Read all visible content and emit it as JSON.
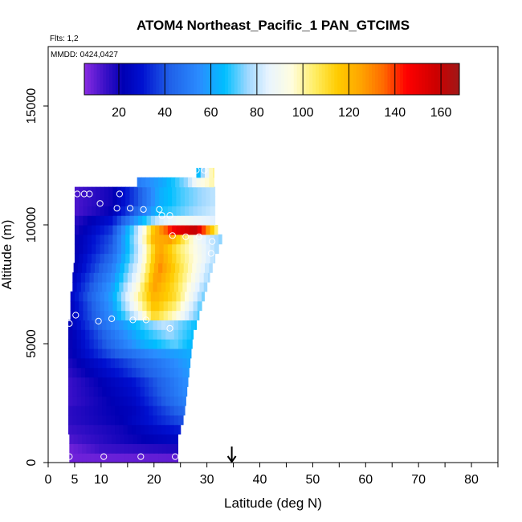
{
  "header": {
    "title": "ATOM4 Northeast_Pacific_1 PAN_GTCIMS",
    "flights_note": "Flts: 1,2",
    "dates_note": "MMDD: 0424,0427"
  },
  "colorbar": {
    "min": 5,
    "max": 168,
    "ticks": [
      "20",
      "40",
      "60",
      "80",
      "100",
      "120",
      "140",
      "160"
    ],
    "tick_values": [
      20,
      40,
      60,
      80,
      100,
      120,
      140,
      160
    ],
    "colors": [
      {
        "v": 5,
        "c": "#8a2be2"
      },
      {
        "v": 14,
        "c": "#3b10c8"
      },
      {
        "v": 22,
        "c": "#0000b4"
      },
      {
        "v": 30,
        "c": "#0010d0"
      },
      {
        "v": 42,
        "c": "#2060e8"
      },
      {
        "v": 55,
        "c": "#2a8cff"
      },
      {
        "v": 66,
        "c": "#00bfff"
      },
      {
        "v": 76,
        "c": "#9fd8ff"
      },
      {
        "v": 85,
        "c": "#e8f4ff"
      },
      {
        "v": 95,
        "c": "#fffde0"
      },
      {
        "v": 105,
        "c": "#ffee66"
      },
      {
        "v": 115,
        "c": "#ffcc00"
      },
      {
        "v": 125,
        "c": "#ffa500"
      },
      {
        "v": 135,
        "c": "#ff6a00"
      },
      {
        "v": 145,
        "c": "#ff0000"
      },
      {
        "v": 158,
        "c": "#cc0000"
      },
      {
        "v": 168,
        "c": "#a01818"
      }
    ]
  },
  "chart_data": {
    "type": "heatmap",
    "title": "ATOM4 Northeast_Pacific_1 PAN_GTCIMS",
    "xlabel": "Latitude (deg N)",
    "ylabel": "Altitude (m)",
    "xlim": [
      0,
      85
    ],
    "ylim": [
      0,
      17500
    ],
    "x_ticks": [
      0,
      5,
      10,
      20,
      30,
      40,
      50,
      60,
      70,
      80
    ],
    "x_minor_ticks": [
      15,
      25,
      35,
      45,
      55,
      65,
      75,
      85
    ],
    "y_ticks": [
      0,
      5000,
      10000,
      15000
    ],
    "arrow_latitude": 34.7,
    "altitude_bin_m": 400,
    "note": "Each row: altitude bin bottom, latitude extent, and PAN value profile along latitude (value at latitude via piecewise linear knots).",
    "rows": [
      {
        "alt": 0,
        "lat": [
          4.0,
          24.5
        ],
        "knots": [
          [
            4,
            8
          ],
          [
            24.5,
            10
          ]
        ]
      },
      {
        "alt": 400,
        "lat": [
          4.0,
          24.5
        ],
        "knots": [
          [
            4,
            8
          ],
          [
            10,
            14
          ],
          [
            24.5,
            18
          ]
        ]
      },
      {
        "alt": 800,
        "lat": [
          4.0,
          24.5
        ],
        "knots": [
          [
            4,
            12
          ],
          [
            12,
            18
          ],
          [
            24.5,
            26
          ]
        ]
      },
      {
        "alt": 1200,
        "lat": [
          3.8,
          25.0
        ],
        "knots": [
          [
            3.8,
            14
          ],
          [
            14,
            20
          ],
          [
            25,
            32
          ]
        ]
      },
      {
        "alt": 1600,
        "lat": [
          3.8,
          25.5
        ],
        "knots": [
          [
            3.8,
            16
          ],
          [
            14,
            22
          ],
          [
            25.5,
            40
          ]
        ]
      },
      {
        "alt": 2000,
        "lat": [
          3.8,
          25.8
        ],
        "knots": [
          [
            3.8,
            16
          ],
          [
            16,
            24
          ],
          [
            25.8,
            46
          ]
        ]
      },
      {
        "alt": 2400,
        "lat": [
          3.8,
          26.0
        ],
        "knots": [
          [
            3.8,
            14
          ],
          [
            16,
            26
          ],
          [
            26,
            52
          ]
        ]
      },
      {
        "alt": 2800,
        "lat": [
          3.8,
          26.2
        ],
        "knots": [
          [
            3.8,
            14
          ],
          [
            16,
            28
          ],
          [
            26.2,
            55
          ]
        ]
      },
      {
        "alt": 3200,
        "lat": [
          3.8,
          26.4
        ],
        "knots": [
          [
            3.8,
            14
          ],
          [
            16,
            30
          ],
          [
            26.4,
            56
          ]
        ]
      },
      {
        "alt": 3600,
        "lat": [
          3.8,
          26.6
        ],
        "knots": [
          [
            3.8,
            16
          ],
          [
            14,
            32
          ],
          [
            26.6,
            58
          ]
        ]
      },
      {
        "alt": 4000,
        "lat": [
          3.8,
          26.8
        ],
        "knots": [
          [
            3.8,
            18
          ],
          [
            14,
            36
          ],
          [
            26.8,
            60
          ]
        ]
      },
      {
        "alt": 4400,
        "lat": [
          3.8,
          27.0
        ],
        "knots": [
          [
            3.8,
            20
          ],
          [
            12,
            40
          ],
          [
            20,
            55
          ],
          [
            27,
            62
          ]
        ]
      },
      {
        "alt": 4800,
        "lat": [
          3.8,
          27.2
        ],
        "knots": [
          [
            3.8,
            20
          ],
          [
            12,
            45
          ],
          [
            18,
            62
          ],
          [
            24,
            72
          ],
          [
            27.2,
            64
          ]
        ]
      },
      {
        "alt": 5200,
        "lat": [
          3.8,
          27.4
        ],
        "knots": [
          [
            3.8,
            20
          ],
          [
            12,
            48
          ],
          [
            18,
            66
          ],
          [
            23,
            76
          ],
          [
            27.4,
            66
          ]
        ]
      },
      {
        "alt": 5600,
        "lat": [
          3.8,
          28.0
        ],
        "knots": [
          [
            3.8,
            22
          ],
          [
            12,
            52
          ],
          [
            18,
            70
          ],
          [
            22,
            80
          ],
          [
            28,
            66
          ]
        ]
      },
      {
        "alt": 6000,
        "lat": [
          4.2,
          28.5
        ],
        "knots": [
          [
            4.2,
            24
          ],
          [
            12,
            56
          ],
          [
            17,
            85
          ],
          [
            20,
            112
          ],
          [
            24,
            96
          ],
          [
            28.5,
            70
          ]
        ]
      },
      {
        "alt": 6400,
        "lat": [
          4.2,
          29.0
        ],
        "knots": [
          [
            4.2,
            24
          ],
          [
            12,
            58
          ],
          [
            17,
            95
          ],
          [
            20,
            118
          ],
          [
            24,
            104
          ],
          [
            29,
            70
          ]
        ]
      },
      {
        "alt": 6800,
        "lat": [
          4.2,
          29.5
        ],
        "knots": [
          [
            4.2,
            26
          ],
          [
            12,
            60
          ],
          [
            17,
            100
          ],
          [
            20,
            122
          ],
          [
            24,
            110
          ],
          [
            29.5,
            72
          ]
        ]
      },
      {
        "alt": 7200,
        "lat": [
          4.6,
          30.0
        ],
        "knots": [
          [
            4.6,
            26
          ],
          [
            12,
            58
          ],
          [
            17,
            96
          ],
          [
            20,
            126
          ],
          [
            24,
            110
          ],
          [
            30,
            74
          ]
        ]
      },
      {
        "alt": 7600,
        "lat": [
          4.6,
          30.5
        ],
        "knots": [
          [
            4.6,
            24
          ],
          [
            12,
            54
          ],
          [
            17,
            90
          ],
          [
            20.5,
            128
          ],
          [
            24,
            112
          ],
          [
            30.5,
            76
          ]
        ]
      },
      {
        "alt": 8000,
        "lat": [
          4.8,
          31.0
        ],
        "knots": [
          [
            4.8,
            22
          ],
          [
            12,
            50
          ],
          [
            17,
            86
          ],
          [
            21,
            130
          ],
          [
            25,
            108
          ],
          [
            31,
            76
          ]
        ]
      },
      {
        "alt": 8400,
        "lat": [
          5.0,
          31.5
        ],
        "knots": [
          [
            5,
            22
          ],
          [
            12,
            46
          ],
          [
            17,
            82
          ],
          [
            21,
            128
          ],
          [
            25,
            106
          ],
          [
            31.5,
            78
          ]
        ]
      },
      {
        "alt": 8800,
        "lat": [
          5.0,
          32.2
        ],
        "knots": [
          [
            5,
            20
          ],
          [
            12,
            42
          ],
          [
            17,
            80
          ],
          [
            21,
            126
          ],
          [
            25,
            104
          ],
          [
            32.2,
            76
          ]
        ]
      },
      {
        "alt": 9200,
        "lat": [
          5.0,
          32.8
        ],
        "knots": [
          [
            5,
            20
          ],
          [
            12,
            40
          ],
          [
            17,
            82
          ],
          [
            20,
            122
          ],
          [
            23,
            126
          ],
          [
            28,
            90
          ],
          [
            32.8,
            74
          ]
        ]
      },
      {
        "alt": 9600,
        "lat": [
          5.0,
          32.0
        ],
        "knots": [
          [
            5,
            18
          ],
          [
            12,
            36
          ],
          [
            17,
            80
          ],
          [
            20,
            118
          ],
          [
            24,
            150
          ],
          [
            28,
            160
          ],
          [
            32,
            100
          ]
        ]
      },
      {
        "alt": 10000,
        "lat": [
          5.0,
          31.5
        ],
        "knots": [
          [
            5,
            16
          ],
          [
            12,
            30
          ],
          [
            17,
            60
          ],
          [
            21,
            82
          ],
          [
            25,
            90
          ],
          [
            31.5,
            84
          ]
        ]
      },
      {
        "alt": 10400,
        "lat": [
          5.0,
          31.5
        ],
        "knots": [
          [
            5,
            12
          ],
          [
            12,
            22
          ],
          [
            17,
            45
          ],
          [
            21,
            66
          ],
          [
            25,
            72
          ],
          [
            31.5,
            82
          ]
        ]
      },
      {
        "alt": 10800,
        "lat": [
          5.0,
          31.5
        ],
        "knots": [
          [
            5,
            12
          ],
          [
            12,
            20
          ],
          [
            17,
            40
          ],
          [
            21,
            62
          ],
          [
            25,
            70
          ],
          [
            31.5,
            80
          ]
        ]
      },
      {
        "alt": 11200,
        "lat": [
          5.0,
          31.5
        ],
        "knots": [
          [
            5,
            12
          ],
          [
            12,
            20
          ],
          [
            17,
            40
          ],
          [
            21,
            62
          ],
          [
            25,
            70
          ],
          [
            31.5,
            80
          ]
        ]
      },
      {
        "alt": 11600,
        "lat": [
          16.8,
          31.3
        ],
        "knots": [
          [
            16.8,
            50
          ],
          [
            22,
            62
          ],
          [
            26,
            75
          ],
          [
            28,
            90
          ],
          [
            31.3,
            100
          ]
        ]
      },
      {
        "alt": 12000,
        "lat": [
          28.0,
          31.3
        ],
        "knots": [
          [
            28,
            60
          ],
          [
            29.5,
            80
          ],
          [
            31.3,
            105
          ]
        ]
      }
    ],
    "points": [
      [
        4.0,
        250
      ],
      [
        10.5,
        250
      ],
      [
        17.5,
        250
      ],
      [
        24.0,
        250
      ],
      [
        4.0,
        5850
      ],
      [
        5.2,
        6200
      ],
      [
        9.5,
        5950
      ],
      [
        12.0,
        6050
      ],
      [
        16.0,
        6000
      ],
      [
        18.5,
        6000
      ],
      [
        23.0,
        5650
      ],
      [
        5.5,
        11300
      ],
      [
        6.8,
        11300
      ],
      [
        7.8,
        11300
      ],
      [
        9.8,
        10900
      ],
      [
        13.5,
        11300
      ],
      [
        13.0,
        10700
      ],
      [
        15.5,
        10700
      ],
      [
        18.0,
        10650
      ],
      [
        21.0,
        10650
      ],
      [
        21.5,
        10400
      ],
      [
        23.0,
        10400
      ],
      [
        23.5,
        9550
      ],
      [
        26.0,
        9500
      ],
      [
        28.5,
        9500
      ],
      [
        31.0,
        9300
      ],
      [
        30.8,
        8800
      ],
      [
        28.0,
        12300
      ],
      [
        29.5,
        12300
      ]
    ]
  }
}
